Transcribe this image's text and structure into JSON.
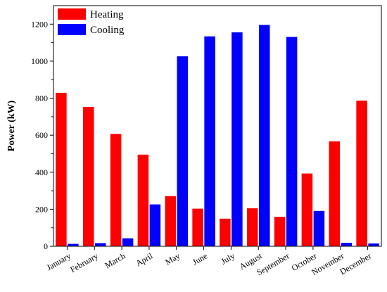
{
  "chart_data": {
    "type": "bar",
    "title": "",
    "xlabel": "",
    "ylabel": "Power (kW)",
    "ylim": [
      0,
      1300
    ],
    "yticks": [
      0,
      200,
      400,
      600,
      800,
      1000,
      1200
    ],
    "grid": false,
    "legend_position": "top-left",
    "categories": [
      "January",
      "February",
      "March",
      "April",
      "May",
      "June",
      "July",
      "August",
      "September",
      "October",
      "November",
      "December"
    ],
    "series": [
      {
        "name": "Heating",
        "color": "#ff0000",
        "values": [
          828,
          752,
          606,
          494,
          270,
          202,
          148,
          204,
          158,
          392,
          566,
          786
        ]
      },
      {
        "name": "Cooling",
        "color": "#0000ff",
        "values": [
          12,
          16,
          42,
          225,
          1025,
          1133,
          1155,
          1195,
          1130,
          190,
          18,
          14
        ]
      }
    ]
  }
}
